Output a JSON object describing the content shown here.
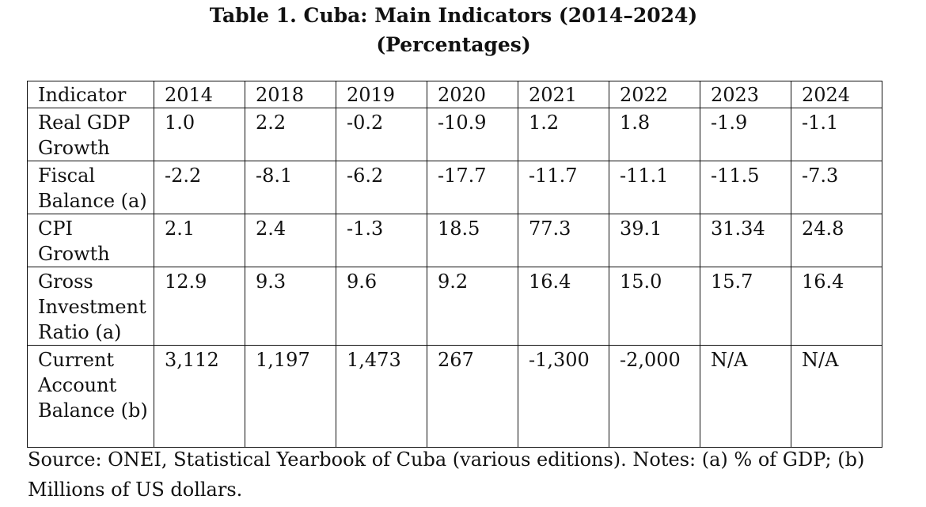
{
  "title": {
    "line1": "Table 1. Cuba: Main Indicators (2014–2024)",
    "line2": "(Percentages)"
  },
  "table": {
    "header": [
      "Indicator",
      "2014",
      "2018",
      "2019",
      "2020",
      "2021",
      "2022",
      "2023",
      "2024"
    ],
    "rows": [
      {
        "indicator": "Real GDP Growth",
        "values": [
          "1.0",
          "2.2",
          "-0.2",
          "-10.9",
          "1.2",
          "1.8",
          "-1.9",
          "-1.1"
        ]
      },
      {
        "indicator": "Fiscal Balance (a)",
        "values": [
          "-2.2",
          "-8.1",
          "-6.2",
          "-17.7",
          "-11.7",
          "-11.1",
          "-11.5",
          "-7.3"
        ]
      },
      {
        "indicator": "CPI Growth",
        "values": [
          "2.1",
          "2.4",
          "-1.3",
          "18.5",
          "77.3",
          "39.1",
          "31.34",
          "24.8"
        ]
      },
      {
        "indicator": "Gross Investment Ratio (a)",
        "values": [
          "12.9",
          "9.3",
          "9.6",
          "9.2",
          "16.4",
          "15.0",
          "15.7",
          "16.4"
        ]
      },
      {
        "indicator": "Current Account Balance (b)",
        "values": [
          "3,112",
          "1,197",
          "1,473",
          "267",
          "-1,300",
          "-2,000",
          "N/A",
          "N/A"
        ]
      }
    ]
  },
  "source": "Source: ONEI, Statistical Yearbook of Cuba (various editions). Notes: (a) % of GDP; (b) Millions of US dollars."
}
